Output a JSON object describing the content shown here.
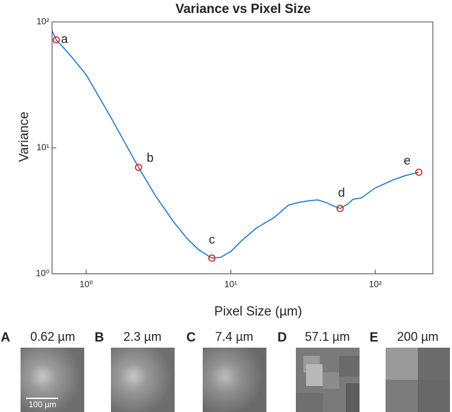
{
  "chart_data": {
    "type": "line",
    "title": "Variance vs Pixel Size",
    "x_label": "Pixel Size (µm)",
    "y_label": "Variance",
    "xscale": "log",
    "yscale": "log",
    "xlim": [
      0.58,
      250
    ],
    "ylim": [
      1,
      100
    ],
    "xticks": [
      {
        "value": 1,
        "label": "10⁰"
      },
      {
        "value": 10,
        "label": "10¹"
      },
      {
        "value": 100,
        "label": "10²"
      }
    ],
    "yticks": [
      {
        "value": 1,
        "label": "10⁰"
      },
      {
        "value": 10,
        "label": "10¹"
      },
      {
        "value": 100,
        "label": "10²"
      }
    ],
    "series": [
      {
        "color": "#1f77c4",
        "x": [
          0.58,
          0.62,
          0.7,
          0.8,
          1.0,
          1.5,
          2.3,
          3,
          4,
          5,
          6,
          7.4,
          8.5,
          10,
          12,
          15,
          20,
          25,
          30,
          35,
          40,
          45,
          50,
          57.1,
          65,
          70,
          80,
          100,
          130,
          160,
          200
        ],
        "values": [
          85,
          72,
          62,
          52,
          38,
          17,
          7,
          4.2,
          2.6,
          1.9,
          1.55,
          1.33,
          1.35,
          1.5,
          1.85,
          2.3,
          2.8,
          3.5,
          3.7,
          3.8,
          3.86,
          3.7,
          3.5,
          3.3,
          3.6,
          3.9,
          4.0,
          4.8,
          5.5,
          6.0,
          6.4
        ]
      }
    ],
    "markers": {
      "color": "#e0201b",
      "labels": [
        "a",
        "b",
        "c",
        "d",
        "e"
      ],
      "x": [
        0.62,
        2.3,
        7.4,
        57.1,
        200
      ],
      "values": [
        72,
        7,
        1.33,
        3.3,
        6.4
      ]
    }
  },
  "panels": [
    {
      "letter": "A",
      "label": "0.62 µm"
    },
    {
      "letter": "B",
      "label": "2.3 µm"
    },
    {
      "letter": "C",
      "label": "7.4 µm"
    },
    {
      "letter": "D",
      "label": "57.1 µm"
    },
    {
      "letter": "E",
      "label": "200 µm"
    }
  ],
  "scale_bar": "100 µm"
}
